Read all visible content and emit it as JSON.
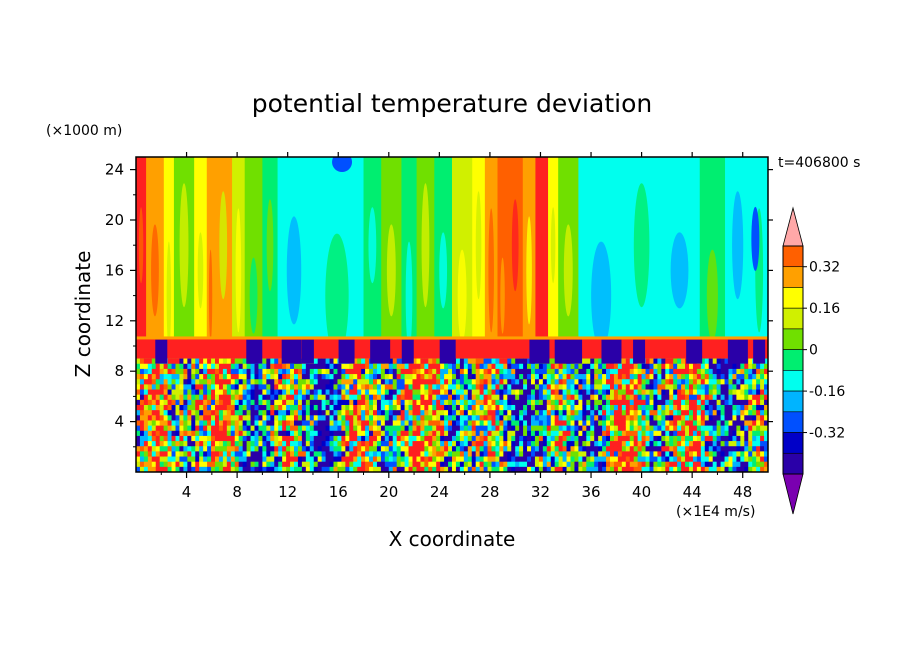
{
  "chart_data": {
    "type": "heatmap",
    "title": "potential temperature deviation",
    "xlabel": "X coordinate",
    "ylabel": "Z coordinate",
    "x_unit": "(×1E4 m/s)",
    "y_unit": "(×1000 m)",
    "time_label": "t=406800 s",
    "xlim": [
      0,
      50
    ],
    "ylim": [
      0,
      25
    ],
    "x_ticks": [
      "4",
      "8",
      "12",
      "16",
      "20",
      "24",
      "28",
      "32",
      "36",
      "40",
      "44",
      "48"
    ],
    "y_ticks": [
      "4",
      "8",
      "12",
      "16",
      "20",
      "24"
    ],
    "colorbar": {
      "levels": [
        -0.48,
        -0.4,
        -0.32,
        -0.24,
        -0.16,
        -0.08,
        0,
        0.08,
        0.16,
        0.24,
        0.32,
        0.4
      ],
      "colors": [
        "#7a00b0",
        "#2a00a8",
        "#0000c8",
        "#0050ff",
        "#00b4ff",
        "#00ffee",
        "#00ee70",
        "#70e000",
        "#d0f000",
        "#ffff00",
        "#ffa000",
        "#ff6000",
        "#ff2020",
        "#ffa8a8"
      ],
      "labels": [
        "0.32",
        "0.16",
        "0",
        "-0.16",
        "-0.32"
      ],
      "label_values": [
        0.32,
        0.16,
        0,
        -0.16,
        -0.32
      ]
    },
    "upper_layer_columns": [
      {
        "x0": 0,
        "x1": 0.8,
        "v": 0.4
      },
      {
        "x0": 0.8,
        "x1": 2.2,
        "v": 0.3
      },
      {
        "x0": 2.2,
        "x1": 3.0,
        "v": 0.16
      },
      {
        "x0": 3.0,
        "x1": 4.6,
        "v": 0.05
      },
      {
        "x0": 4.6,
        "x1": 5.6,
        "v": 0.2
      },
      {
        "x0": 5.6,
        "x1": 6.2,
        "v": 0.3
      },
      {
        "x0": 6.2,
        "x1": 7.6,
        "v": 0.24
      },
      {
        "x0": 7.6,
        "x1": 8.6,
        "v": 0.1
      },
      {
        "x0": 8.6,
        "x1": 10.0,
        "v": 0.02
      },
      {
        "x0": 10.0,
        "x1": 11.2,
        "v": -0.05
      },
      {
        "x0": 11.2,
        "x1": 13.8,
        "v": -0.12
      },
      {
        "x0": 13.8,
        "x1": 18.0,
        "v": -0.14
      },
      {
        "x0": 18.0,
        "x1": 19.4,
        "v": -0.05
      },
      {
        "x0": 19.4,
        "x1": 21.0,
        "v": 0.05
      },
      {
        "x0": 21.0,
        "x1": 22.2,
        "v": -0.05
      },
      {
        "x0": 22.2,
        "x1": 23.6,
        "v": 0.05
      },
      {
        "x0": 23.6,
        "x1": 25.0,
        "v": -0.05
      },
      {
        "x0": 25.0,
        "x1": 26.6,
        "v": 0.08
      },
      {
        "x0": 26.6,
        "x1": 27.6,
        "v": 0.18
      },
      {
        "x0": 27.6,
        "x1": 28.6,
        "v": 0.26
      },
      {
        "x0": 28.6,
        "x1": 29.4,
        "v": 0.34
      },
      {
        "x0": 29.4,
        "x1": 30.6,
        "v": 0.38
      },
      {
        "x0": 30.6,
        "x1": 31.6,
        "v": 0.28
      },
      {
        "x0": 31.6,
        "x1": 32.6,
        "v": 0.4
      },
      {
        "x0": 32.6,
        "x1": 33.4,
        "v": 0.16
      },
      {
        "x0": 33.4,
        "x1": 35.0,
        "v": 0.02
      },
      {
        "x0": 35.0,
        "x1": 38.6,
        "v": -0.12
      },
      {
        "x0": 38.6,
        "x1": 41.4,
        "v": -0.1
      },
      {
        "x0": 41.4,
        "x1": 44.6,
        "v": -0.12
      },
      {
        "x0": 44.6,
        "x1": 46.6,
        "v": -0.06
      },
      {
        "x0": 46.6,
        "x1": 48.6,
        "v": -0.12
      },
      {
        "x0": 48.6,
        "x1": 50.0,
        "v": -0.1
      }
    ],
    "tropopause_band": {
      "z0": 9.0,
      "z1": 10.6,
      "v": 0.4,
      "v_top_edge": 0.28
    },
    "lower_layer": {
      "z0": 0,
      "z1": 9.0,
      "value_range": [
        -0.48,
        0.4
      ]
    }
  }
}
